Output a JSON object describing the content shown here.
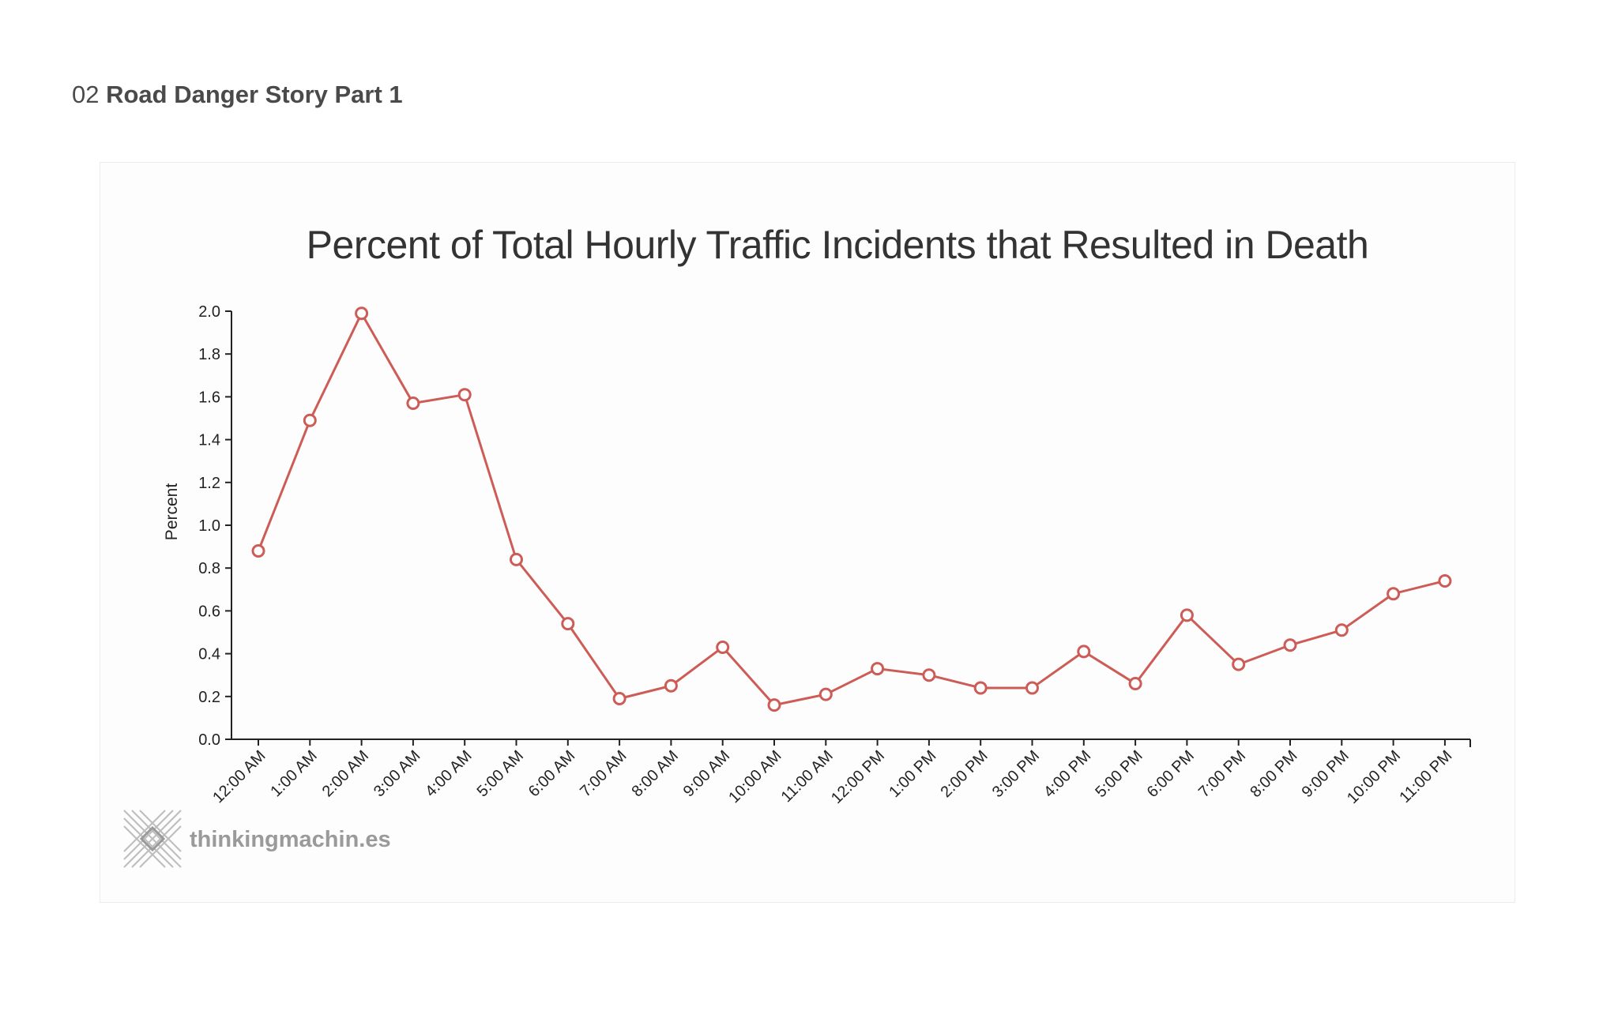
{
  "header": {
    "number": "02",
    "title": "Road Danger Story Part 1"
  },
  "branding": {
    "name": "thinkingmachin.es"
  },
  "colors": {
    "series": "#cd5c57",
    "axis": "#222222",
    "title": "#333333"
  },
  "chart_data": {
    "type": "line",
    "title": "Percent of Total Hourly Traffic Incidents that Resulted in Death",
    "xlabel": "",
    "ylabel": "Percent",
    "ylim": [
      0,
      2.0
    ],
    "yticks": [
      0.0,
      0.2,
      0.4,
      0.6,
      0.8,
      1.0,
      1.2,
      1.4,
      1.6,
      1.8,
      2.0
    ],
    "ytick_labels": [
      "0.0",
      "0.2",
      "0.4",
      "0.6",
      "0.8",
      "1.0",
      "1.2",
      "1.4",
      "1.6",
      "1.8",
      "2.0"
    ],
    "grid": false,
    "categories": [
      "12:00 AM",
      "1:00 AM",
      "2:00 AM",
      "3:00 AM",
      "4:00 AM",
      "5:00 AM",
      "6:00 AM",
      "7:00 AM",
      "8:00 AM",
      "9:00 AM",
      "10:00 AM",
      "11:00 AM",
      "12:00 PM",
      "1:00 PM",
      "2:00 PM",
      "3:00 PM",
      "4:00 PM",
      "5:00 PM",
      "6:00 PM",
      "7:00 PM",
      "8:00 PM",
      "9:00 PM",
      "10:00 PM",
      "11:00 PM"
    ],
    "series": [
      {
        "name": "Percent",
        "values": [
          0.88,
          1.49,
          1.99,
          1.57,
          1.61,
          0.84,
          0.54,
          0.19,
          0.25,
          0.43,
          0.16,
          0.21,
          0.33,
          0.3,
          0.24,
          0.24,
          0.41,
          0.26,
          0.58,
          0.35,
          0.44,
          0.51,
          0.68,
          0.74
        ]
      }
    ]
  }
}
